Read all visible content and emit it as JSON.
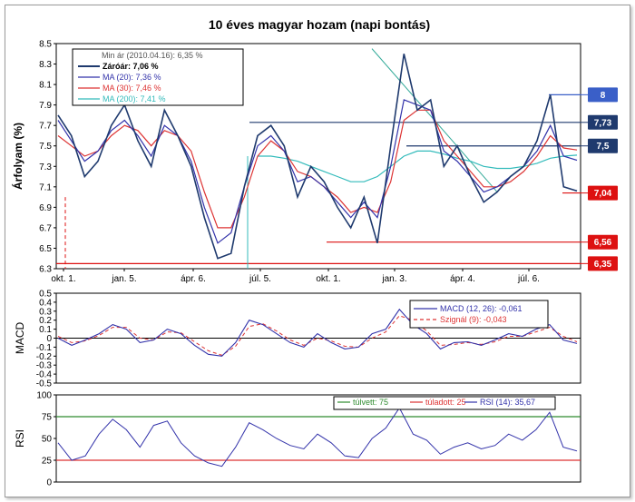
{
  "title": "10 éves magyar hozam (napi bontás)",
  "chart_data": [
    {
      "type": "line",
      "panel": "price",
      "ylabel": "Árfolyam (%)",
      "ylim": [
        6.3,
        8.5
      ],
      "yticks": [
        "8.5",
        "8.3",
        "8.1",
        "7.9",
        "7.7",
        "7.5",
        "7.3",
        "7.1",
        "6.9",
        "6.7",
        "6.5",
        "6.3"
      ],
      "xticks": [
        "okt. 1.",
        "jan. 5.",
        "ápr. 6.",
        "júl. 5.",
        "okt. 1.",
        "jan. 3.",
        "ápr. 4.",
        "júl. 6."
      ],
      "legend": [
        {
          "label": "Min ár (2010.04.16): 6,35 %",
          "color": "#555555"
        },
        {
          "label": "Záróár: 7,06 %",
          "color": "#1f3a6e",
          "bold": true
        },
        {
          "label": "MA (20): 7,36 %",
          "color": "#3333aa"
        },
        {
          "label": "MA (30): 7,46 %",
          "color": "#dd3333"
        },
        {
          "label": "MA (200): 7,41 %",
          "color": "#33bbbb"
        }
      ],
      "series_points": {
        "close": [
          7.8,
          7.6,
          7.2,
          7.35,
          7.7,
          7.9,
          7.55,
          7.3,
          7.85,
          7.6,
          7.3,
          6.8,
          6.4,
          6.45,
          7.1,
          7.6,
          7.7,
          7.5,
          7.0,
          7.3,
          7.15,
          6.9,
          6.7,
          7.0,
          6.55,
          7.5,
          8.4,
          7.85,
          7.95,
          7.3,
          7.5,
          7.2,
          6.95,
          7.05,
          7.2,
          7.3,
          7.55,
          8.0,
          7.1,
          7.06
        ],
        "ma20": [
          7.75,
          7.55,
          7.35,
          7.45,
          7.65,
          7.75,
          7.6,
          7.4,
          7.7,
          7.6,
          7.35,
          6.9,
          6.55,
          6.65,
          7.1,
          7.5,
          7.6,
          7.45,
          7.15,
          7.2,
          7.1,
          6.95,
          6.8,
          6.95,
          6.8,
          7.3,
          7.95,
          7.9,
          7.85,
          7.45,
          7.35,
          7.2,
          7.05,
          7.1,
          7.2,
          7.3,
          7.45,
          7.7,
          7.4,
          7.36
        ],
        "ma30": [
          7.6,
          7.5,
          7.4,
          7.45,
          7.6,
          7.7,
          7.65,
          7.5,
          7.65,
          7.6,
          7.45,
          7.05,
          6.7,
          6.7,
          7.0,
          7.4,
          7.55,
          7.45,
          7.25,
          7.2,
          7.1,
          7.0,
          6.85,
          6.9,
          6.85,
          7.15,
          7.75,
          7.85,
          7.85,
          7.55,
          7.4,
          7.25,
          7.1,
          7.1,
          7.15,
          7.25,
          7.4,
          7.6,
          7.48,
          7.46
        ],
        "ma200": [
          null,
          null,
          null,
          null,
          null,
          null,
          null,
          null,
          null,
          null,
          null,
          null,
          null,
          null,
          null,
          7.4,
          7.4,
          7.38,
          7.35,
          7.3,
          7.25,
          7.2,
          7.15,
          7.15,
          7.2,
          7.3,
          7.4,
          7.45,
          7.45,
          7.42,
          7.38,
          7.35,
          7.3,
          7.28,
          7.28,
          7.3,
          7.33,
          7.38,
          7.4,
          7.41
        ]
      },
      "hlines": [
        {
          "label": "8",
          "value": 8.0,
          "color": "#3a5fc8"
        },
        {
          "label": "7,73",
          "value": 7.73,
          "color": "#1f3a6e"
        },
        {
          "label": "7,5",
          "value": 7.5,
          "color": "#1f3a6e"
        },
        {
          "label": "7,04",
          "value": 7.04,
          "color": "#dd1111"
        },
        {
          "label": "6,56",
          "value": 6.56,
          "color": "#dd1111"
        },
        {
          "label": "6,35",
          "value": 6.35,
          "color": "#dd1111"
        }
      ]
    },
    {
      "type": "line",
      "panel": "macd",
      "ylabel": "MACD",
      "ylim": [
        -0.5,
        0.5
      ],
      "yticks": [
        "0.5",
        "0.4",
        "0.3",
        "0.2",
        "0.1",
        "0",
        "-0.1",
        "-0.2",
        "-0.3",
        "-0.4",
        "-0.5"
      ],
      "legend": [
        {
          "label": "MACD (12, 26): -0,061",
          "color": "#3333aa"
        },
        {
          "label": "Szignál (9): -0,043",
          "color": "#dd3333"
        }
      ],
      "series_points": {
        "macd": [
          0,
          -0.08,
          -0.02,
          0.05,
          0.15,
          0.1,
          -0.05,
          -0.02,
          0.1,
          0.05,
          -0.08,
          -0.18,
          -0.2,
          -0.05,
          0.2,
          0.15,
          0.05,
          -0.05,
          -0.1,
          0.05,
          -0.05,
          -0.12,
          -0.1,
          0.05,
          0.1,
          0.32,
          0.15,
          0.05,
          -0.12,
          -0.05,
          -0.04,
          -0.08,
          -0.02,
          0.05,
          0.02,
          0.1,
          0.15,
          -0.02,
          -0.06
        ],
        "signal": [
          0.02,
          -0.05,
          -0.03,
          0.03,
          0.12,
          0.12,
          0.0,
          -0.02,
          0.07,
          0.06,
          -0.04,
          -0.14,
          -0.19,
          -0.09,
          0.13,
          0.16,
          0.08,
          -0.02,
          -0.08,
          0.0,
          -0.03,
          -0.09,
          -0.1,
          0.0,
          0.07,
          0.25,
          0.2,
          0.08,
          -0.08,
          -0.07,
          -0.05,
          -0.07,
          -0.04,
          0.02,
          0.02,
          0.07,
          0.12,
          0.02,
          -0.04
        ]
      }
    },
    {
      "type": "line",
      "panel": "rsi",
      "ylabel": "RSI",
      "ylim": [
        0,
        100
      ],
      "yticks": [
        "100",
        "75",
        "50",
        "25",
        "0"
      ],
      "legend": [
        {
          "label": "túlvett: 75",
          "color": "#2e8b2e"
        },
        {
          "label": "túladott: 25",
          "color": "#dd3333"
        },
        {
          "label": "RSI (14): 35,67",
          "color": "#3333aa"
        }
      ],
      "levels": [
        {
          "value": 75,
          "color": "#2e8b2e"
        },
        {
          "value": 25,
          "color": "#dd3333"
        }
      ],
      "series_points": {
        "rsi": [
          45,
          25,
          30,
          55,
          72,
          60,
          40,
          65,
          70,
          45,
          30,
          22,
          18,
          40,
          68,
          60,
          50,
          42,
          38,
          55,
          45,
          30,
          28,
          50,
          62,
          85,
          55,
          48,
          32,
          40,
          45,
          38,
          42,
          55,
          48,
          60,
          80,
          40,
          35.67
        ]
      }
    }
  ]
}
